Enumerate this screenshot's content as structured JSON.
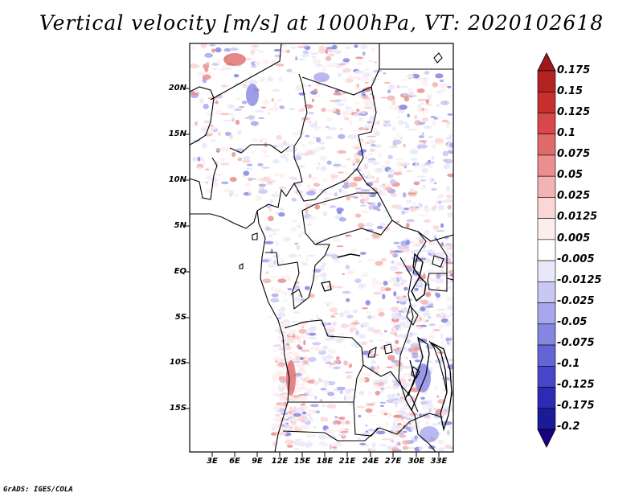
{
  "title": "Vertical velocity [m/s] at 1000hPa, VT: 2020102618",
  "lat_labels": [
    "20N",
    "15N",
    "10N",
    "5N",
    "EQ",
    "5S",
    "10S",
    "15S"
  ],
  "lon_labels": [
    "3E",
    "6E",
    "9E",
    "12E",
    "15E",
    "18E",
    "21E",
    "24E",
    "27E",
    "30E",
    "33E"
  ],
  "colorbar": {
    "levels": [
      "0.175",
      "0.15",
      "0.125",
      "0.1",
      "0.075",
      "0.05",
      "0.025",
      "0.0125",
      "0.005",
      "-0.005",
      "-0.0125",
      "-0.025",
      "-0.05",
      "-0.075",
      "-0.1",
      "-0.125",
      "-0.175",
      "-0.2"
    ],
    "colors": [
      "#9e1a1a",
      "#b52222",
      "#c83030",
      "#d84848",
      "#e06a6a",
      "#ea8e8e",
      "#f4b3b3",
      "#fbd6d6",
      "#fdeeee",
      "#ffffff",
      "#e8e8fb",
      "#c8c8f3",
      "#a7a7ec",
      "#8585e2",
      "#6464d6",
      "#4646c8",
      "#2b2bb4",
      "#1b1b98",
      "#1a0080"
    ]
  },
  "credit": "GrADS: IGES/COLA"
}
